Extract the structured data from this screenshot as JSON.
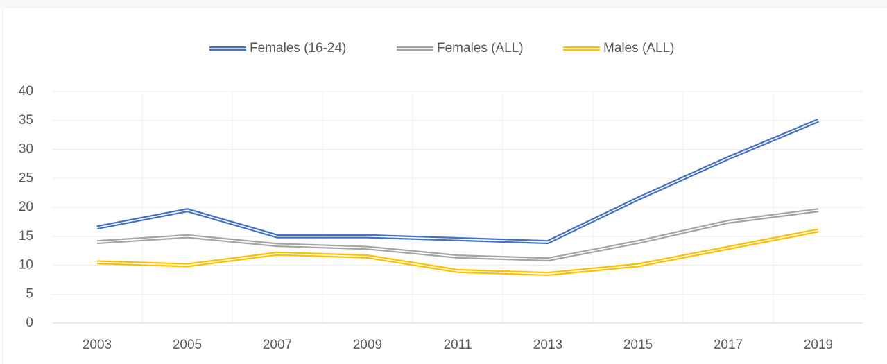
{
  "chart_data": {
    "type": "line",
    "categories": [
      "2003",
      "2005",
      "2007",
      "2009",
      "2011",
      "2013",
      "2015",
      "2017",
      "2019"
    ],
    "series": [
      {
        "name": "Females (16-24)",
        "color": "#4472c4",
        "values": [
          16.5,
          19.5,
          15,
          15,
          14.5,
          14,
          21.5,
          28.5,
          35
        ]
      },
      {
        "name": "Females (ALL)",
        "color": "#a5a5a5",
        "values": [
          14,
          15,
          13.5,
          13,
          11.5,
          11,
          14,
          17.5,
          19.5
        ]
      },
      {
        "name": "Males (ALL)",
        "color": "#ffc000",
        "values": [
          10.5,
          10,
          12,
          11.5,
          9,
          8.5,
          10,
          13,
          16
        ]
      }
    ],
    "ylim": [
      0,
      40
    ],
    "yticks": [
      0,
      5,
      10,
      15,
      20,
      25,
      30,
      35,
      40
    ],
    "grid": true,
    "legend": "top"
  }
}
